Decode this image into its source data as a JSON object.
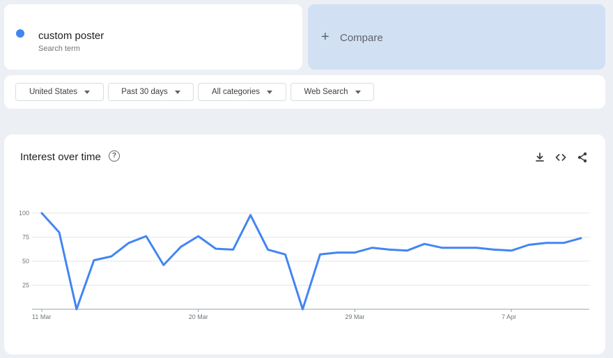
{
  "search_term": {
    "name": "custom poster",
    "type_label": "Search term",
    "color": "#4285f4"
  },
  "compare": {
    "plus": "+",
    "label": "Compare"
  },
  "filters": [
    {
      "label": "United States"
    },
    {
      "label": "Past 30 days"
    },
    {
      "label": "All categories"
    },
    {
      "label": "Web Search"
    }
  ],
  "panel": {
    "title": "Interest over time",
    "help_icon": "question-circle-icon",
    "tools": [
      "download-icon",
      "embed-code-icon",
      "share-icon"
    ]
  },
  "chart_data": {
    "type": "line",
    "title": "Interest over time",
    "x_ticks": [
      "11 Mar",
      "20 Mar",
      "29 Mar",
      "7 Apr"
    ],
    "y_ticks": [
      25,
      50,
      75,
      100
    ],
    "ylim": [
      0,
      100
    ],
    "grid": true,
    "x_start": "11 Mar",
    "series": [
      {
        "name": "custom poster",
        "color": "#4285f4",
        "values": [
          100,
          80,
          0,
          51,
          55,
          69,
          76,
          46,
          65,
          76,
          63,
          62,
          98,
          62,
          57,
          0,
          57,
          59,
          59,
          64,
          62,
          61,
          68,
          64,
          64,
          64,
          62,
          61,
          67,
          69,
          69,
          74
        ]
      }
    ]
  }
}
